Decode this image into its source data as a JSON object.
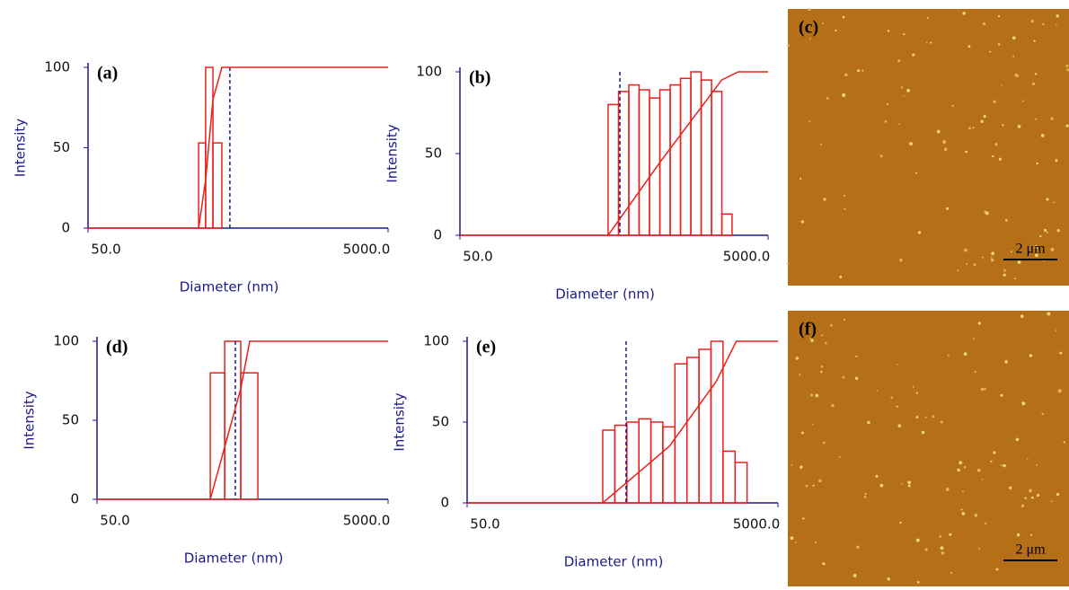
{
  "chart_data": [
    {
      "type": "histogram",
      "label": "(a)",
      "xlabel": "Diameter (nm)",
      "ylabel": "Intensity",
      "bins": [
        273,
        304,
        340,
        390
      ],
      "values": [
        53,
        100,
        53
      ],
      "color": "#e8211d",
      "cumulative": {
        "x": [
          50,
          273,
          304,
          340,
          390,
          5000
        ],
        "y": [
          0,
          0,
          30,
          80,
          100,
          100
        ]
      },
      "marker_x": 441,
      "xscale": "log",
      "xlim": [
        50,
        5000
      ],
      "xticks": [
        {
          "value": 50,
          "label": "50.0"
        },
        {
          "value": 5000,
          "label": "5000.0"
        }
      ],
      "ylim": [
        0,
        100
      ],
      "yticks": [
        0,
        50,
        100
      ],
      "axis_color": "#1a1a8c"
    },
    {
      "type": "histogram",
      "label": "(b)",
      "xlabel": "Diameter (nm)",
      "ylabel": "Intensity",
      "bins": [
        458,
        535,
        624,
        728,
        850,
        992,
        1158,
        1351,
        1577,
        1840,
        2148,
        2507,
        2920
      ],
      "values": [
        80,
        88,
        92,
        89,
        84,
        89,
        92,
        96,
        100,
        95,
        88,
        13
      ],
      "color": "#e8211d",
      "cumulative": {
        "x": [
          50,
          458,
          1000,
          2500,
          3200,
          5000
        ],
        "y": [
          0,
          0,
          45,
          95,
          100,
          100
        ]
      },
      "marker_x": 546,
      "xscale": "log",
      "xlim": [
        50,
        5000
      ],
      "xticks": [
        {
          "value": 50,
          "label": "50.0"
        },
        {
          "value": 5000,
          "label": "5000.0"
        }
      ],
      "ylim": [
        0,
        100
      ],
      "yticks": [
        0,
        50,
        100
      ],
      "axis_color": "#1a1a8c"
    },
    {
      "type": "histogram",
      "label": "(d)",
      "xlabel": "Diameter (nm)",
      "ylabel": "Intensity",
      "bins": [
        300,
        377,
        486,
        637
      ],
      "values": [
        80,
        100,
        80
      ],
      "color": "#e8211d",
      "cumulative": {
        "x": [
          50,
          300,
          486,
          560,
          5000
        ],
        "y": [
          0,
          0,
          70,
          100,
          100
        ]
      },
      "marker_x": 446,
      "xscale": "log",
      "xlim": [
        50,
        5000
      ],
      "xticks": [
        {
          "value": 50,
          "label": "50.0"
        },
        {
          "value": 5000,
          "label": "5000.0"
        }
      ],
      "ylim": [
        0,
        100
      ],
      "yticks": [
        0,
        50,
        100
      ],
      "axis_color": "#1a1a8c"
    },
    {
      "type": "histogram",
      "label": "(e)",
      "xlabel": "Diameter (nm)",
      "ylabel": "Intensity",
      "bins": [
        373,
        446,
        533,
        637,
        761,
        909,
        1087,
        1299,
        1552,
        1855,
        2216,
        2649,
        3165
      ],
      "values": [
        45,
        48,
        50,
        52,
        50,
        47,
        86,
        90,
        95,
        100,
        32,
        25
      ],
      "color": "#e8211d",
      "cumulative": {
        "x": [
          50,
          373,
          1000,
          2000,
          2700,
          5000
        ],
        "y": [
          0,
          0,
          35,
          75,
          100,
          100
        ]
      },
      "marker_x": 527,
      "xscale": "log",
      "xlim": [
        50,
        5000
      ],
      "xticks": [
        {
          "value": 50,
          "label": "50.0"
        },
        {
          "value": 5000,
          "label": "5000.0"
        }
      ],
      "ylim": [
        0,
        100
      ],
      "yticks": [
        0,
        50,
        100
      ],
      "axis_color": "#1a1a8c"
    }
  ],
  "images": [
    {
      "label": "(c)",
      "scale_bar": "2 μm"
    },
    {
      "label": "(f)",
      "scale_bar": "2 μm"
    }
  ]
}
